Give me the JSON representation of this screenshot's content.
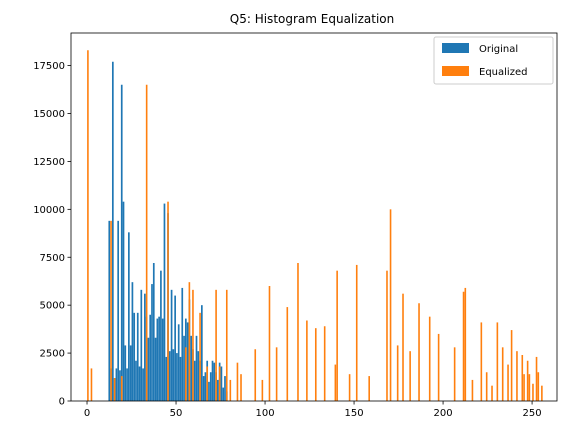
{
  "chart_data": {
    "type": "bar",
    "title": "Q5: Histogram Equalization",
    "xlabel": "",
    "ylabel": "",
    "xlim": [
      -9,
      264
    ],
    "ylim": [
      0,
      19200
    ],
    "xticks": [
      0,
      50,
      100,
      150,
      200,
      250
    ],
    "yticks": [
      0,
      2500,
      5000,
      7500,
      10000,
      12500,
      15000,
      17500
    ],
    "legend": "top-right",
    "series": [
      {
        "name": "Original",
        "color": "#1f77b4",
        "x": [
          12,
          13,
          14,
          15,
          16,
          17,
          18,
          19,
          20,
          21,
          22,
          23,
          24,
          25,
          26,
          27,
          28,
          29,
          30,
          31,
          32,
          33,
          34,
          35,
          36,
          37,
          38,
          39,
          40,
          41,
          42,
          43,
          44,
          45,
          46,
          47,
          48,
          49,
          50,
          51,
          52,
          53,
          54,
          55,
          56,
          57,
          58,
          59,
          60,
          61,
          62,
          63,
          64,
          65,
          66,
          67,
          68,
          69,
          70,
          71,
          72,
          73,
          74,
          75,
          76,
          77,
          78
        ],
        "values": [
          9400,
          1700,
          17700,
          1200,
          1700,
          9400,
          1600,
          16500,
          10400,
          2900,
          1700,
          8800,
          2900,
          6200,
          4600,
          2100,
          4600,
          1800,
          5800,
          1700,
          5600,
          4400,
          3300,
          4500,
          6100,
          7200,
          3300,
          4300,
          4400,
          6800,
          4300,
          10300,
          2300,
          9800,
          2600,
          5800,
          2700,
          5500,
          2500,
          4000,
          2300,
          5900,
          3400,
          4300,
          4100,
          5300,
          3400,
          2700,
          2100,
          3400,
          2600,
          2100,
          5000,
          1300,
          1500,
          2100,
          1000,
          1500,
          2100,
          2000,
          1500,
          1100,
          2000,
          1800,
          700,
          1300,
          500
        ]
      },
      {
        "name": "Equalized",
        "color": "#ff7f0e",
        "x": [
          0,
          2,
          13,
          15,
          19,
          33,
          45,
          55,
          57,
          59,
          63,
          67,
          72,
          74,
          78,
          80,
          84,
          86,
          94,
          98,
          102,
          106,
          112,
          118,
          123,
          128,
          133,
          139,
          140,
          147,
          151,
          158,
          168,
          170,
          174,
          177,
          181,
          186,
          192,
          197,
          206,
          211,
          212,
          216,
          221,
          224,
          227,
          230,
          233,
          236,
          238,
          241,
          244,
          245,
          247,
          248,
          250,
          252,
          253,
          255
        ],
        "values": [
          18300,
          1700,
          9400,
          1200,
          1300,
          16500,
          10400,
          2800,
          6200,
          5800,
          4600,
          1800,
          5800,
          1800,
          5800,
          1100,
          2000,
          1400,
          2700,
          1100,
          6000,
          2800,
          4900,
          7200,
          4200,
          3800,
          3900,
          1900,
          6800,
          1400,
          7100,
          1300,
          6800,
          10000,
          2900,
          5600,
          2600,
          5100,
          4400,
          3500,
          2800,
          5700,
          5900,
          1100,
          4100,
          1500,
          800,
          4100,
          2800,
          1900,
          3700,
          2600,
          2400,
          1400,
          2100,
          1400,
          900,
          2300,
          1500,
          800
        ]
      }
    ]
  }
}
